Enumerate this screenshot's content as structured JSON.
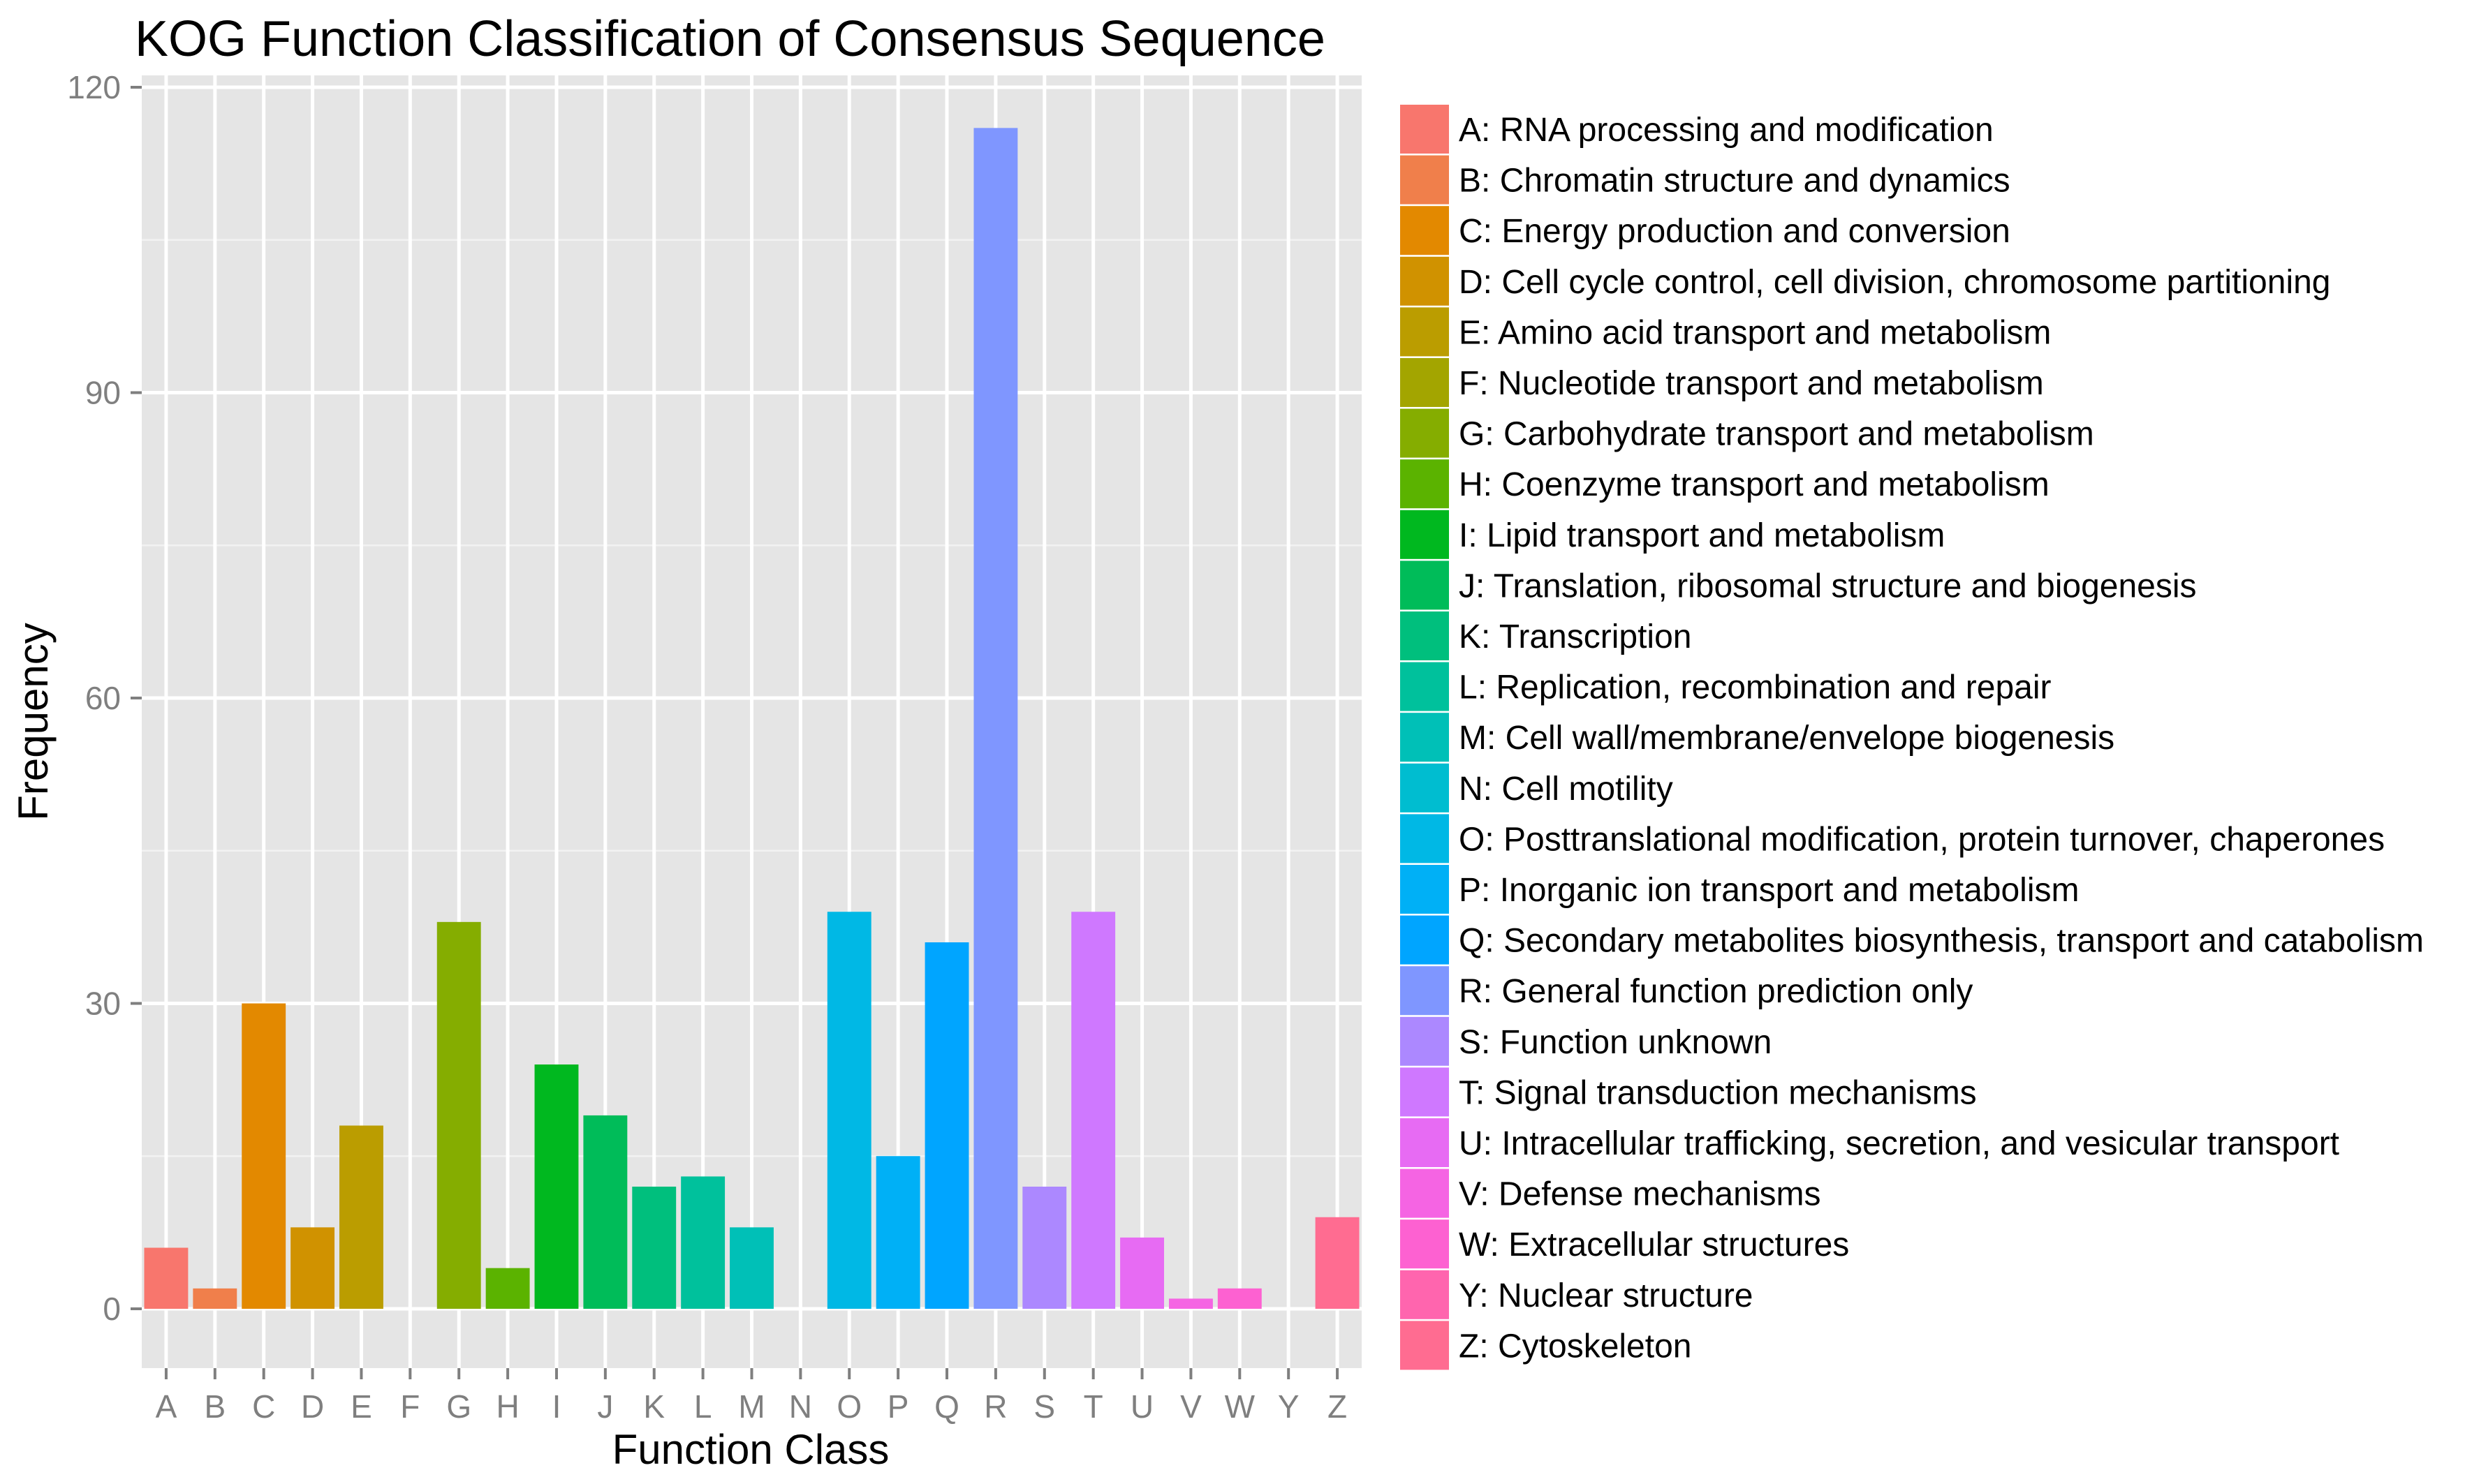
{
  "chart_data": {
    "type": "bar",
    "title": "KOG Function Classification of Consensus Sequence",
    "xlabel": "Function Class",
    "ylabel": "Frequency",
    "ylim": [
      0,
      120
    ],
    "yticks": [
      0,
      30,
      60,
      90,
      120
    ],
    "grid": true,
    "legend_position": "right",
    "categories": [
      "A",
      "B",
      "C",
      "D",
      "E",
      "F",
      "G",
      "H",
      "I",
      "J",
      "K",
      "L",
      "M",
      "N",
      "O",
      "P",
      "Q",
      "R",
      "S",
      "T",
      "U",
      "V",
      "W",
      "Y",
      "Z"
    ],
    "values": [
      6,
      2,
      30,
      8,
      18,
      0,
      38,
      4,
      24,
      19,
      12,
      13,
      8,
      0,
      39,
      15,
      36,
      116,
      12,
      39,
      7,
      1,
      2,
      0,
      9
    ],
    "legend": [
      "A: RNA processing and modification",
      "B: Chromatin structure and dynamics",
      "C: Energy production and conversion",
      "D: Cell cycle control, cell division, chromosome partitioning",
      "E: Amino acid transport and metabolism",
      "F: Nucleotide transport and metabolism",
      "G: Carbohydrate transport and metabolism",
      "H: Coenzyme transport and metabolism",
      "I: Lipid transport and metabolism",
      "J: Translation, ribosomal structure and biogenesis",
      "K: Transcription",
      "L: Replication, recombination and repair",
      "M: Cell wall/membrane/envelope biogenesis",
      "N: Cell motility",
      "O: Posttranslational modification, protein turnover, chaperones",
      "P: Inorganic ion transport and metabolism",
      "Q: Secondary metabolites biosynthesis, transport and catabolism",
      "R: General function prediction only",
      "S: Function unknown",
      "T: Signal transduction mechanisms",
      "U: Intracellular trafficking, secretion, and vesicular transport",
      "V: Defense mechanisms",
      "W: Extracellular structures",
      "Y: Nuclear structure",
      "Z: Cytoskeleton"
    ],
    "colors": [
      "#F8766D",
      "#F07F4B",
      "#E38900",
      "#D09200",
      "#BB9D00",
      "#A3A500",
      "#85AD00",
      "#5BB300",
      "#00B81F",
      "#00BC59",
      "#00BF7D",
      "#00C19C",
      "#00C0B7",
      "#00BDD0",
      "#00B8E5",
      "#00B0F6",
      "#00A5FF",
      "#7F96FF",
      "#AC88FF",
      "#CF78FF",
      "#E76BF3",
      "#F564E3",
      "#FD61D1",
      "#FF65AE",
      "#FF6C91"
    ]
  }
}
